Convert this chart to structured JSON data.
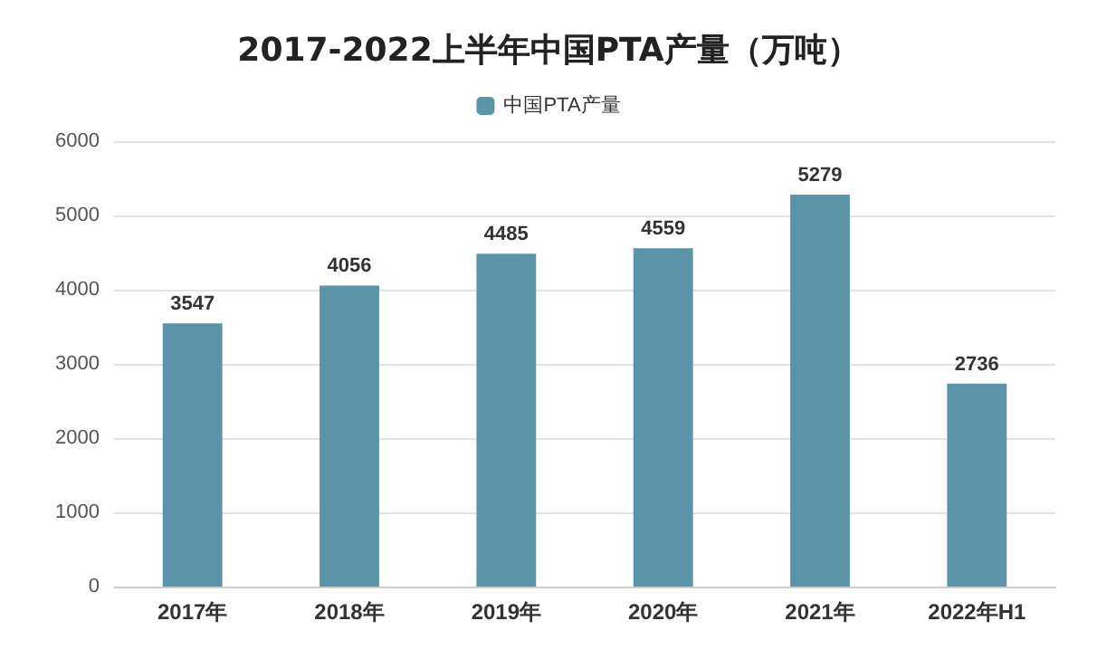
{
  "chart_data": {
    "type": "bar",
    "title": "2017-2022上半年中国PTA产量（万吨）",
    "categories": [
      "2017年",
      "2018年",
      "2019年",
      "2020年",
      "2021年",
      "2022年H1"
    ],
    "series": [
      {
        "name": "中国PTA产量",
        "color": "#5b93a8",
        "values": [
          3547,
          4056,
          4485,
          4559,
          5279,
          2736
        ]
      }
    ],
    "ylim": [
      0,
      6000
    ],
    "yticks": [
      0,
      1000,
      2000,
      3000,
      4000,
      5000,
      6000
    ],
    "grid": "y",
    "legend": "top",
    "data_labels": true
  }
}
